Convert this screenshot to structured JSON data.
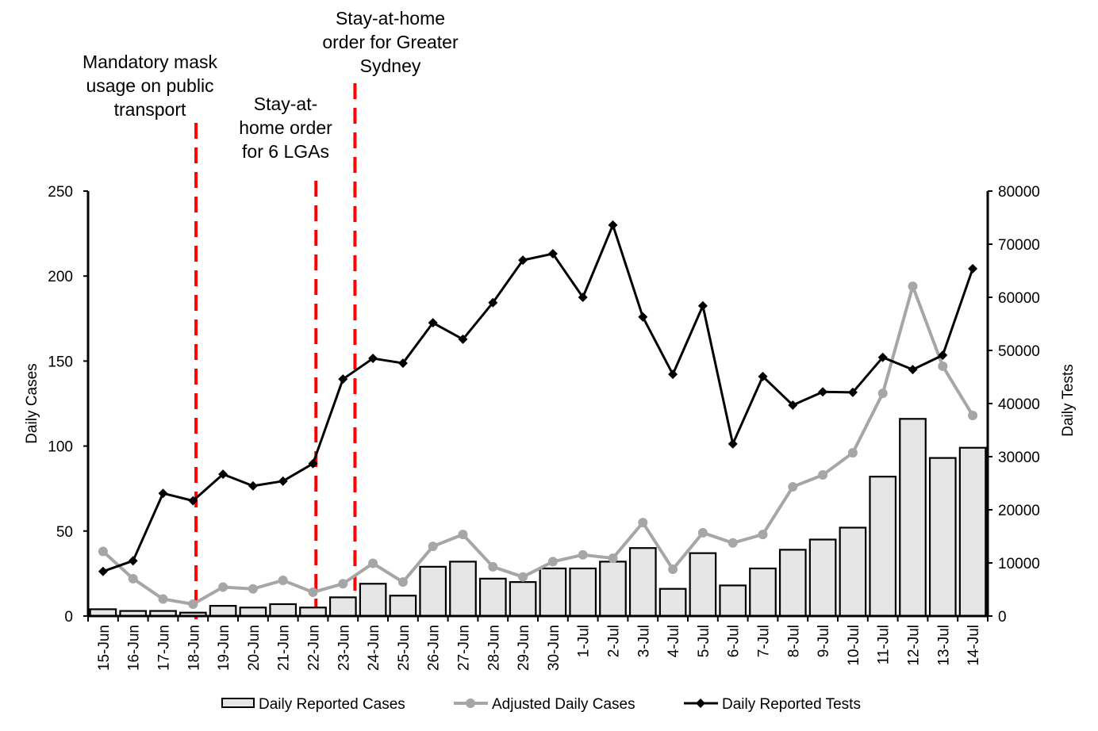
{
  "chart_data": {
    "type": "bar+line",
    "categories": [
      "15-Jun",
      "16-Jun",
      "17-Jun",
      "18-Jun",
      "19-Jun",
      "20-Jun",
      "21-Jun",
      "22-Jun",
      "23-Jun",
      "24-Jun",
      "25-Jun",
      "26-Jun",
      "27-Jun",
      "28-Jun",
      "29-Jun",
      "30-Jun",
      "1-Jul",
      "2-Jul",
      "3-Jul",
      "4-Jul",
      "5-Jul",
      "6-Jul",
      "7-Jul",
      "8-Jul",
      "9-Jul",
      "10-Jul",
      "11-Jul",
      "12-Jul",
      "13-Jul",
      "14-Jul"
    ],
    "series": [
      {
        "name": "Daily Reported Cases",
        "type": "bar",
        "axis": "left",
        "color": "#e6e6e6",
        "values": [
          4,
          3,
          3,
          2,
          6,
          5,
          7,
          5,
          11,
          19,
          12,
          29,
          32,
          22,
          20,
          28,
          28,
          32,
          40,
          16,
          37,
          18,
          28,
          39,
          45,
          52,
          82,
          116,
          93,
          99
        ]
      },
      {
        "name": "Adjusted Daily Cases",
        "type": "line",
        "axis": "left",
        "color": "#a6a6a6",
        "marker": "circle",
        "values": [
          38,
          22,
          10,
          7,
          17,
          16,
          21,
          14,
          19,
          31,
          20,
          41,
          48,
          29,
          23,
          32,
          36,
          34,
          55,
          27.5,
          49,
          43,
          48,
          76,
          83,
          96,
          131,
          194,
          147,
          118
        ]
      },
      {
        "name": "Daily Reported Tests",
        "type": "line",
        "axis": "right",
        "color": "#000000",
        "marker": "diamond",
        "values": [
          8400,
          10400,
          23100,
          21700,
          26700,
          24500,
          25400,
          28700,
          44600,
          48500,
          47600,
          55200,
          52100,
          59000,
          67000,
          68200,
          60000,
          73600,
          56300,
          45500,
          58400,
          32400,
          45100,
          39700,
          42200,
          42100,
          48700,
          46400,
          49100,
          65400
        ]
      }
    ],
    "left_axis": {
      "label": "Daily Cases",
      "range": [
        0,
        250
      ],
      "ticks": [
        "0",
        "50",
        "100",
        "150",
        "200",
        "250"
      ]
    },
    "right_axis": {
      "label": "Daily Tests",
      "range": [
        0,
        80000
      ],
      "ticks": [
        "0",
        "10000",
        "20000",
        "30000",
        "40000",
        "50000",
        "60000",
        "70000",
        "80000"
      ]
    },
    "legend_position": "bottom",
    "annotations": [
      {
        "after_category": "18-Jun",
        "offset": 0.1,
        "color": "#ff0000",
        "lines": [
          "Mandatory mask",
          "usage on public",
          "transport"
        ]
      },
      {
        "after_category": "22-Jun",
        "offset": 0.1,
        "color": "#ff0000",
        "lines": [
          "Stay-at-",
          "home order",
          "for 6 LGAs"
        ]
      },
      {
        "after_category": "23-Jun",
        "offset": 0.4,
        "color": "#ff0000",
        "lines": [
          "Stay-at-home",
          "order for Greater",
          "Sydney"
        ]
      }
    ]
  }
}
